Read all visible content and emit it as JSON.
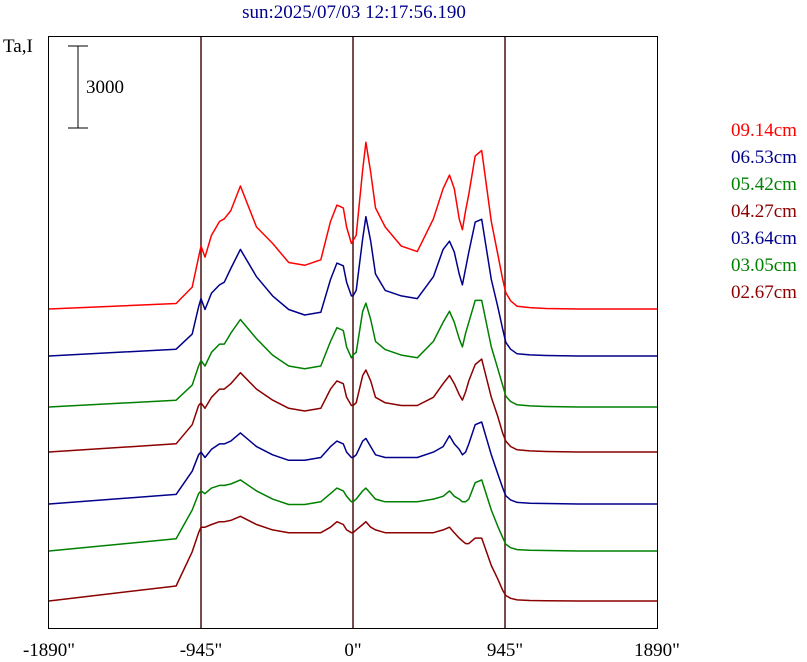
{
  "chart_data": {
    "type": "line",
    "title": "sun:2025/07/03 12:17:56.190",
    "ylabel": "Ta,I",
    "xlim": [
      -1890,
      1890
    ],
    "x_ticks": [
      {
        "value": -1890,
        "label": "-1890\""
      },
      {
        "value": -945,
        "label": "-945\""
      },
      {
        "value": 0,
        "label": "0\""
      },
      {
        "value": 945,
        "label": "945\""
      },
      {
        "value": 1890,
        "label": "1890\""
      }
    ],
    "vertical_lines_at": [
      -945,
      0,
      945
    ],
    "scale_bar": {
      "value": 3000,
      "label": "3000"
    },
    "legend_position": "right",
    "x": [
      -1890,
      -1100,
      -1000,
      -960,
      -945,
      -920,
      -880,
      -830,
      -800,
      -760,
      -700,
      -600,
      -500,
      -400,
      -300,
      -200,
      -140,
      -100,
      -60,
      -40,
      -10,
      0,
      20,
      60,
      80,
      110,
      140,
      200,
      300,
      400,
      500,
      560,
      600,
      630,
      660,
      680,
      700,
      720,
      760,
      800,
      860,
      900,
      930,
      950,
      980,
      1020,
      1100,
      1200,
      1400,
      1890
    ],
    "series": [
      {
        "name": "09.14cm",
        "color": "#ff0000",
        "values": [
          0,
          200,
          800,
          1900,
          2300,
          1900,
          2700,
          3200,
          3300,
          3600,
          4500,
          3000,
          2400,
          1700,
          1600,
          1800,
          3200,
          3800,
          3700,
          3000,
          2400,
          2500,
          2700,
          5100,
          6100,
          5000,
          3700,
          3000,
          2300,
          2100,
          3300,
          4400,
          4900,
          4400,
          3300,
          2900,
          3600,
          4200,
          5600,
          5800,
          3200,
          2000,
          1100,
          600,
          300,
          100,
          50,
          20,
          0,
          0
        ]
      },
      {
        "name": "06.53cm",
        "color": "#00008b",
        "values": [
          0,
          250,
          800,
          1800,
          2100,
          1700,
          2300,
          2600,
          2700,
          3200,
          3900,
          2900,
          2200,
          1700,
          1500,
          1600,
          2800,
          3400,
          3300,
          2700,
          2200,
          2200,
          2400,
          4300,
          5100,
          4200,
          3000,
          2400,
          2200,
          2100,
          2900,
          3900,
          4200,
          3800,
          3000,
          2600,
          3200,
          3800,
          4900,
          5000,
          2800,
          1800,
          1000,
          500,
          250,
          80,
          40,
          20,
          0,
          0
        ]
      },
      {
        "name": "05.42cm",
        "color": "#008000",
        "values": [
          0,
          250,
          800,
          1500,
          1700,
          1500,
          2000,
          2300,
          2300,
          2700,
          3200,
          2500,
          1900,
          1500,
          1400,
          1500,
          2400,
          2900,
          2800,
          2200,
          1800,
          1900,
          2000,
          3500,
          3800,
          3200,
          2400,
          2100,
          1900,
          1800,
          2400,
          3100,
          3500,
          3100,
          2500,
          2200,
          2700,
          3100,
          3900,
          3900,
          2200,
          1400,
          800,
          400,
          200,
          80,
          40,
          20,
          0,
          0
        ]
      },
      {
        "name": "04.27cm",
        "color": "#8b0000",
        "values": [
          0,
          300,
          1000,
          1700,
          1800,
          1600,
          2000,
          2300,
          2300,
          2500,
          2900,
          2300,
          1900,
          1600,
          1500,
          1600,
          2300,
          2600,
          2500,
          2000,
          1700,
          1700,
          1800,
          2800,
          3000,
          2600,
          2000,
          1800,
          1700,
          1700,
          2000,
          2500,
          2800,
          2500,
          2100,
          1900,
          2200,
          2600,
          3200,
          3400,
          2000,
          1300,
          700,
          400,
          200,
          80,
          40,
          20,
          0,
          0
        ]
      },
      {
        "name": "03.64cm",
        "color": "#00008b",
        "values": [
          0,
          350,
          1200,
          1800,
          1900,
          1700,
          2000,
          2200,
          2200,
          2300,
          2600,
          2100,
          1800,
          1600,
          1600,
          1700,
          2100,
          2300,
          2200,
          1900,
          1700,
          1700,
          1800,
          2300,
          2400,
          2100,
          1800,
          1700,
          1700,
          1700,
          1900,
          2100,
          2500,
          2200,
          2000,
          1800,
          1900,
          2200,
          2900,
          3000,
          1800,
          1100,
          600,
          300,
          150,
          60,
          30,
          20,
          0,
          0
        ]
      },
      {
        "name": "03.05cm",
        "color": "#008000",
        "values": [
          0,
          450,
          1500,
          2100,
          2200,
          2100,
          2300,
          2400,
          2400,
          2450,
          2600,
          2200,
          1900,
          1700,
          1700,
          1800,
          2100,
          2300,
          2200,
          2000,
          1800,
          1800,
          1900,
          2200,
          2300,
          2100,
          1900,
          1800,
          1800,
          1800,
          1900,
          2000,
          2200,
          2000,
          1900,
          1800,
          1800,
          1900,
          2500,
          2600,
          1500,
          900,
          500,
          250,
          120,
          50,
          30,
          20,
          0,
          0
        ]
      },
      {
        "name": "02.67cm",
        "color": "#8b0000",
        "values": [
          0,
          550,
          1800,
          2500,
          2700,
          2700,
          2800,
          2900,
          2900,
          2950,
          3100,
          2800,
          2600,
          2500,
          2500,
          2500,
          2700,
          2900,
          2800,
          2600,
          2500,
          2500,
          2600,
          2800,
          2900,
          2700,
          2600,
          2500,
          2500,
          2500,
          2500,
          2600,
          2700,
          2500,
          2300,
          2200,
          2100,
          2100,
          2300,
          2300,
          1300,
          800,
          400,
          200,
          100,
          40,
          20,
          10,
          0,
          0
        ]
      }
    ]
  }
}
